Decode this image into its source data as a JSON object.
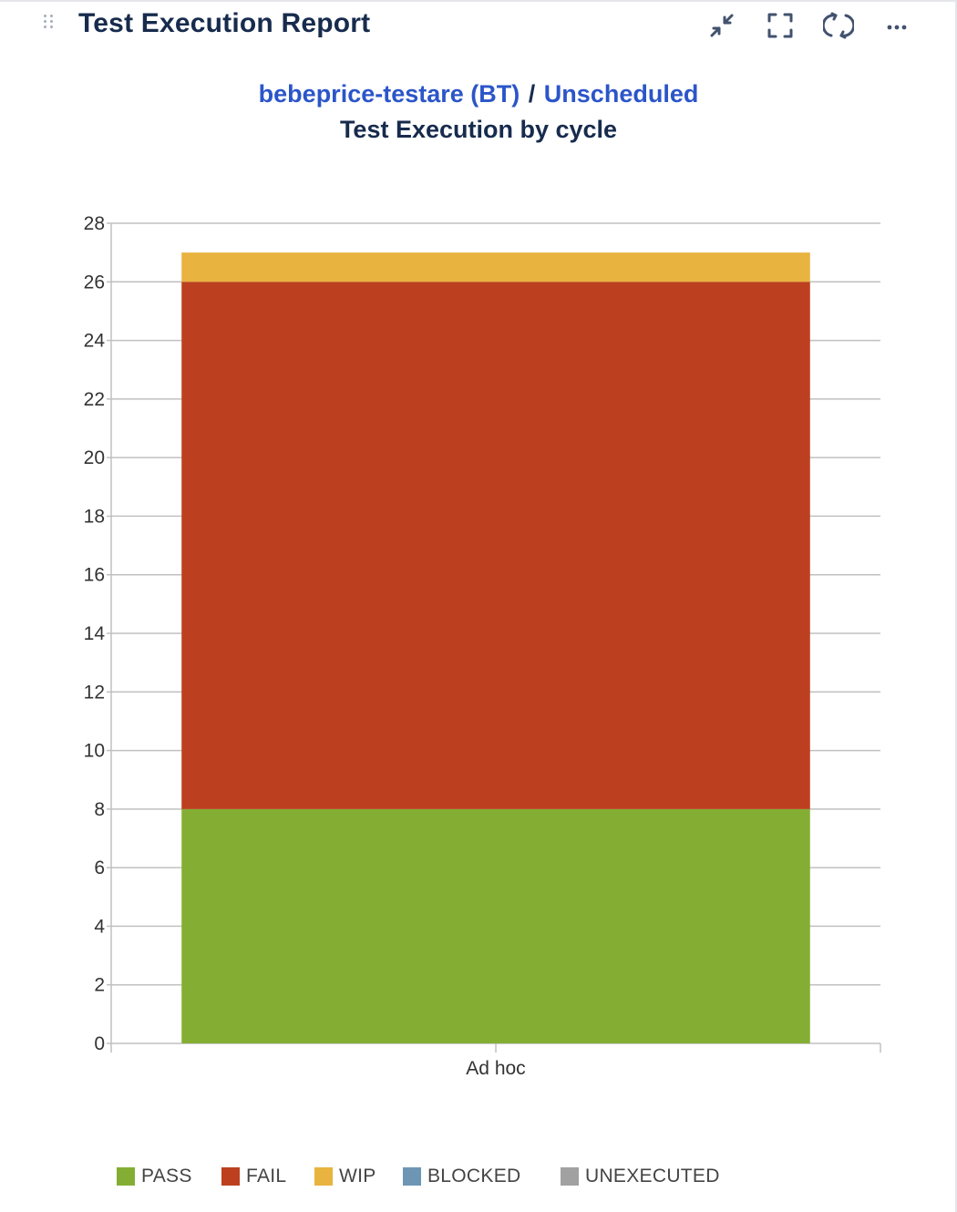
{
  "gadget": {
    "title": "Test Execution Report",
    "toolbar": {
      "collapse_icon": "collapse-arrows-icon",
      "fullscreen_icon": "fullscreen-icon",
      "refresh_icon": "refresh-icon",
      "more_icon": "more-options-icon"
    }
  },
  "header": {
    "project_link": "bebeprice-testare (BT)",
    "separator": "/",
    "version_link": "Unscheduled",
    "subtitle": "Test Execution by cycle"
  },
  "chart_data": {
    "type": "bar",
    "stacked": true,
    "categories": [
      "Ad hoc"
    ],
    "series": [
      {
        "name": "PASS",
        "values": [
          8
        ],
        "color": "#84ae33"
      },
      {
        "name": "FAIL",
        "values": [
          18
        ],
        "color": "#bc401f"
      },
      {
        "name": "WIP",
        "values": [
          1
        ],
        "color": "#e8b33f"
      },
      {
        "name": "BLOCKED",
        "values": [
          0
        ],
        "color": "#6d96b4"
      },
      {
        "name": "UNEXECUTED",
        "values": [
          0
        ],
        "color": "#a1a1a1"
      }
    ],
    "ylim": [
      0,
      28
    ],
    "yticks": [
      0,
      2,
      4,
      6,
      8,
      10,
      12,
      14,
      16,
      18,
      20,
      22,
      24,
      26,
      28
    ],
    "grid": true,
    "legend_position": "bottom"
  },
  "colors": {
    "title": "#172b4d",
    "link": "#2b55c9",
    "gridline": "#c0c0c0"
  }
}
